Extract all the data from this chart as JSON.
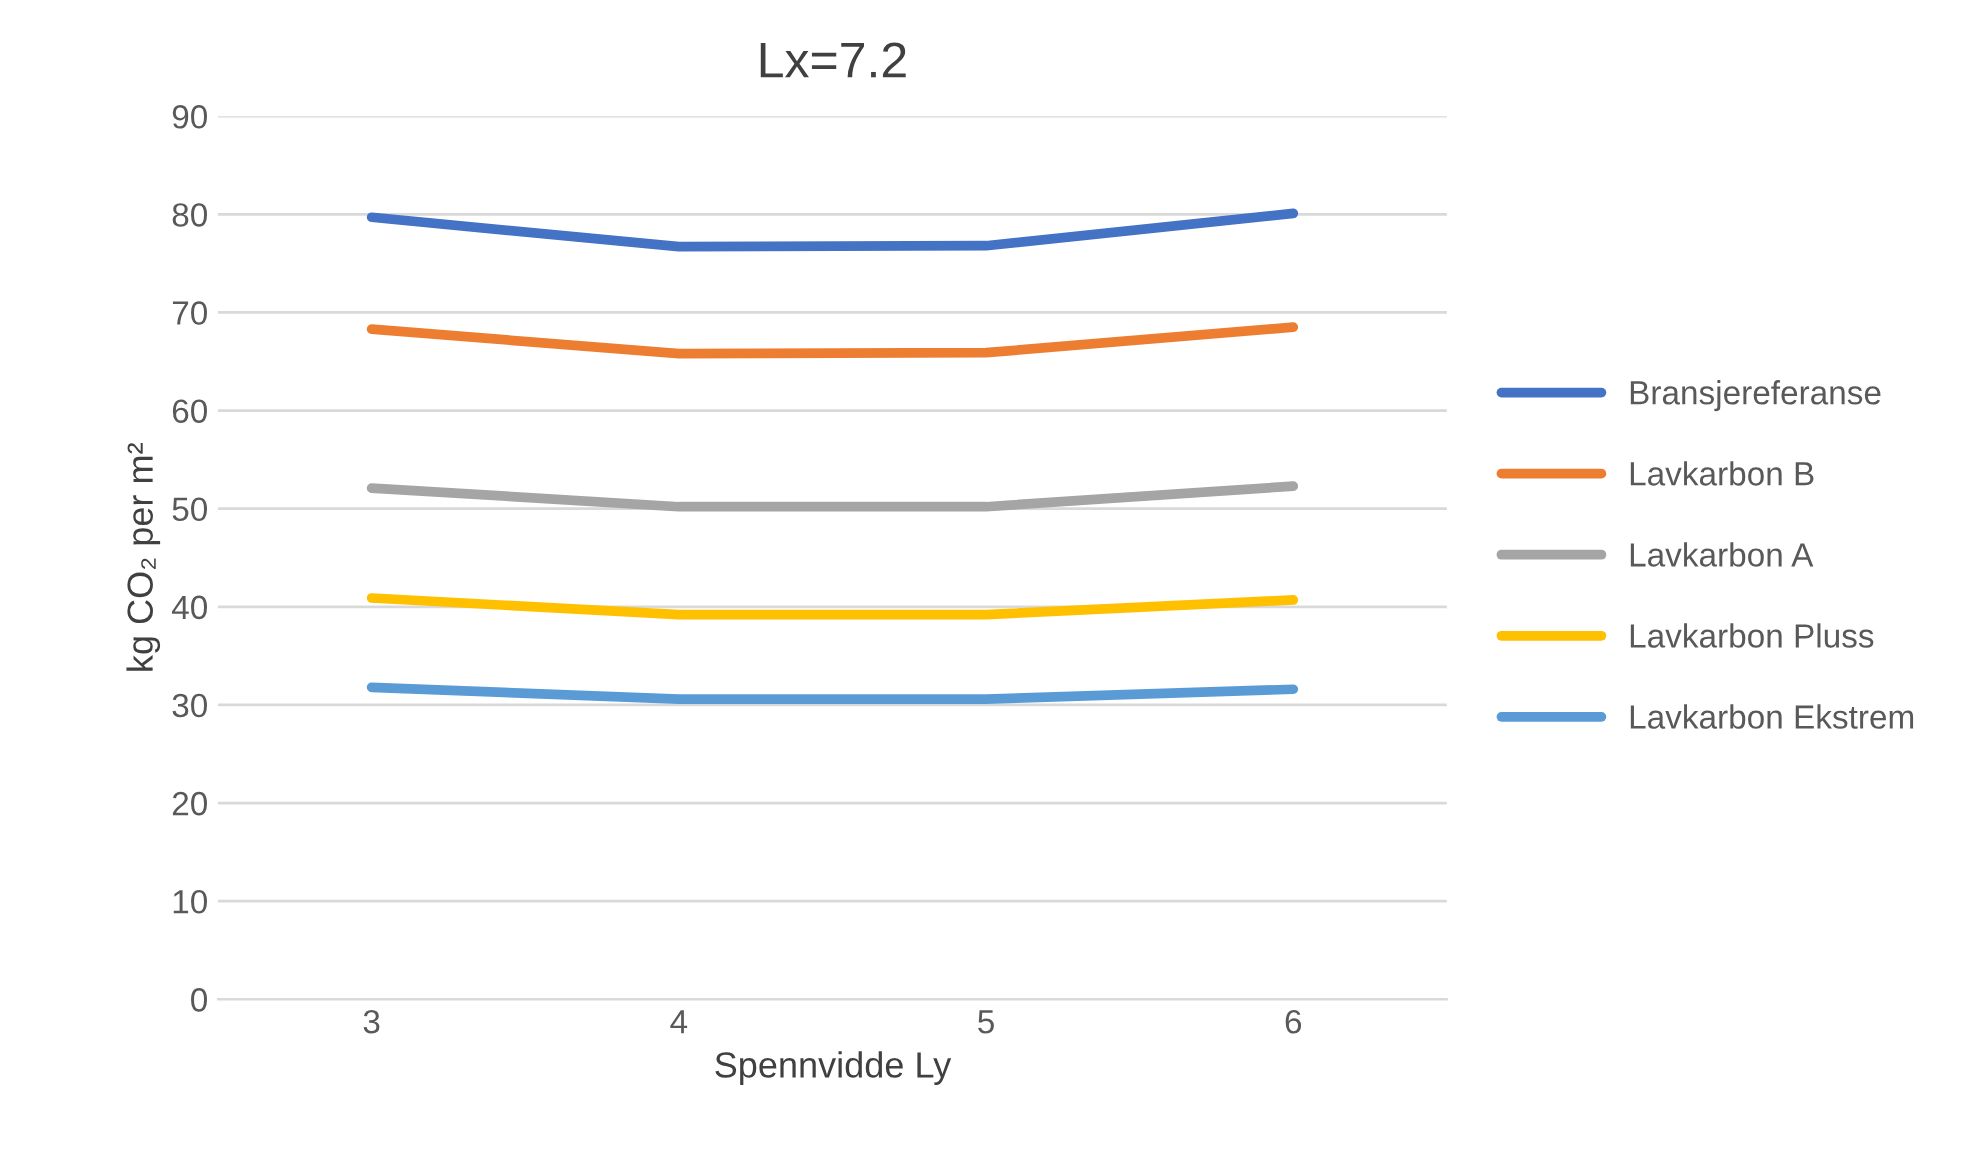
{
  "chart_data": {
    "type": "line",
    "title": "Lx=7.2",
    "xlabel": "Spennvidde Ly",
    "ylabel": "kg CO₂ per m²",
    "categories": [
      "3",
      "4",
      "5",
      "6"
    ],
    "series": [
      {
        "name": "Bransjereferanse",
        "color": "#4472c4",
        "values": [
          79.7,
          76.7,
          76.8,
          80.1
        ]
      },
      {
        "name": "Lavkarbon B",
        "color": "#ed7d31",
        "values": [
          68.3,
          65.8,
          65.9,
          68.5
        ]
      },
      {
        "name": "Lavkarbon A",
        "color": "#a5a5a5",
        "values": [
          52.1,
          50.2,
          50.2,
          52.3
        ]
      },
      {
        "name": "Lavkarbon Pluss",
        "color": "#ffc000",
        "values": [
          40.9,
          39.2,
          39.2,
          40.7
        ]
      },
      {
        "name": "Lavkarbon Ekstrem",
        "color": "#5b9bd5",
        "values": [
          31.8,
          30.6,
          30.6,
          31.6
        ]
      }
    ],
    "ylim": [
      0,
      90
    ],
    "yticks": [
      0,
      10,
      20,
      30,
      40,
      50,
      60,
      70,
      80,
      90
    ],
    "grid": "y",
    "legend": "right",
    "marker": "none",
    "line_style": "solid"
  }
}
